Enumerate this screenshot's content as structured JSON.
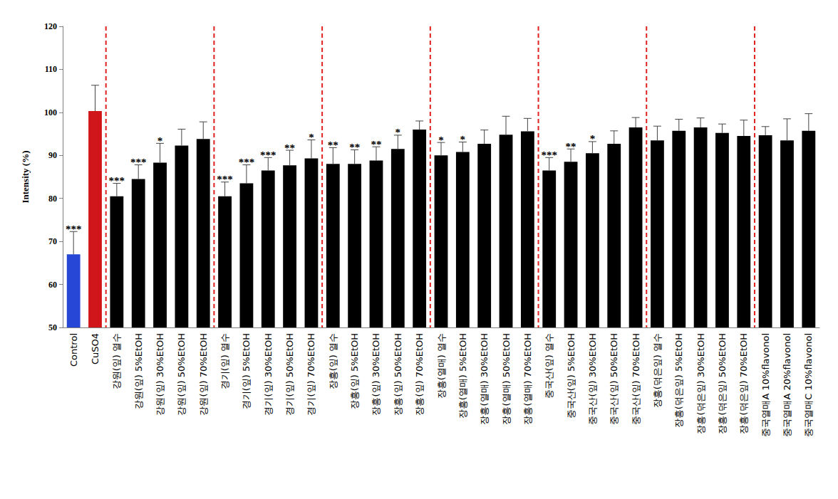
{
  "chart_data": {
    "type": "bar",
    "y_label": "Intensity (%)",
    "categories": [
      "Control",
      "CuSO4",
      "강원(잎) 열수",
      "강원(잎) 5%EtOH",
      "강원(잎) 30%EtOH",
      "강원(잎) 50%EtOH",
      "강원(잎) 70%EtOH",
      "경기(잎) 열수",
      "경기(잎) 5%EtOH",
      "경기(잎) 30%EtOH",
      "경기(잎) 50%EtOH",
      "경기(잎) 70%EtOH",
      "장흥(잎) 열수",
      "장흥(잎) 5%EtOH",
      "장흥(잎) 30%EtOH",
      "장흥(잎) 50%EtOH",
      "장흥(잎) 70%EtOH",
      "장흥(열매) 열수",
      "장흥(열매) 5%EtOH",
      "장흥(열매) 30%EtOH",
      "장흥(열매) 50%EtOH",
      "장흥(열매) 70%EtOH",
      "중국산(잎) 열수",
      "중국산(잎) 5%EtOH",
      "중국산(잎) 30%EtOH",
      "중국산(잎) 50%EtOH",
      "중국산(잎) 70%EtOH",
      "장흥(덖은잎) 열수",
      "장흥(덖은잎) 5%EtOH",
      "장흥(덖은잎) 30%EtOH",
      "장흥(덖은잎) 50%EtOH",
      "장흥(덖은잎) 70%EtOH",
      "중국열매A 10%flavonol",
      "중국열매A 20%flavonol",
      "중국열매C 10%flavonol"
    ],
    "values": [
      67,
      100.3,
      80.5,
      84.5,
      88.3,
      92.3,
      93.8,
      80.5,
      83.5,
      86.5,
      87.7,
      89.3,
      88,
      88,
      88.8,
      91.5,
      96,
      90,
      90.8,
      92.7,
      94.8,
      95.6,
      86.5,
      88.5,
      90.5,
      92.7,
      96.5,
      93.5,
      95.7,
      96.5,
      95.2,
      94.5,
      94.7,
      93.5,
      95.7
    ],
    "error": [
      5.3,
      6,
      3,
      3.3,
      4.5,
      3.8,
      4,
      3.3,
      4.3,
      3,
      3.5,
      4.3,
      3.8,
      3.3,
      3.2,
      3.2,
      2,
      3,
      2.3,
      3.2,
      4.3,
      3,
      3,
      3,
      2.7,
      3,
      2.3,
      3.3,
      2.7,
      2.2,
      2.1,
      3.7,
      2,
      5,
      4
    ],
    "significance": [
      "***",
      null,
      "***",
      "***",
      "*",
      null,
      null,
      "***",
      "***",
      "***",
      "**",
      "*",
      "**",
      "**",
      "**",
      "*",
      null,
      "*",
      "*",
      null,
      null,
      null,
      "***",
      "**",
      "*",
      null,
      null,
      null,
      null,
      null,
      null,
      null,
      null,
      null,
      null
    ],
    "colors": [
      "#2747d6",
      "#d0161a",
      "#000000",
      "#000000",
      "#000000",
      "#000000",
      "#000000",
      "#000000",
      "#000000",
      "#000000",
      "#000000",
      "#000000",
      "#000000",
      "#000000",
      "#000000",
      "#000000",
      "#000000",
      "#000000",
      "#000000",
      "#000000",
      "#000000",
      "#000000",
      "#000000",
      "#000000",
      "#000000",
      "#000000",
      "#000000",
      "#000000",
      "#000000",
      "#000000",
      "#000000",
      "#000000",
      "#000000",
      "#000000",
      "#000000"
    ],
    "ylim": [
      50,
      120
    ],
    "yticks": [
      50,
      60,
      70,
      80,
      90,
      100,
      110,
      120
    ],
    "grid": false
  }
}
